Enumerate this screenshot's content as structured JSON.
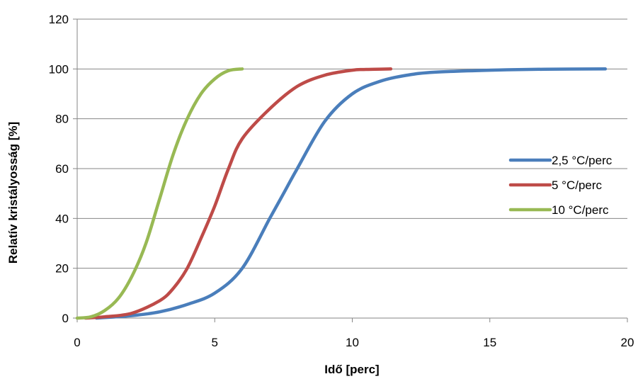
{
  "chart_data": {
    "type": "line",
    "title": "",
    "xlabel": "Idő [perc]",
    "ylabel": "Relatív kristályosság [%]",
    "xlim": [
      0,
      20
    ],
    "ylim": [
      0,
      120
    ],
    "xticks": [
      0,
      5,
      10,
      15,
      20
    ],
    "yticks": [
      0,
      20,
      40,
      60,
      80,
      100,
      120
    ],
    "x_tick_labels": [
      "0",
      "5",
      "10",
      "15",
      "20"
    ],
    "y_tick_labels": [
      "0",
      "20",
      "40",
      "60",
      "80",
      "100",
      "120"
    ],
    "grid": "horizontal",
    "legend_position": "right",
    "series": [
      {
        "name": "2,5 °C/perc",
        "color": "#4A7EBB",
        "x": [
          0.7,
          2,
          3,
          4,
          5,
          6,
          7,
          7.5,
          8,
          9,
          10,
          11,
          12,
          13,
          15,
          17,
          19.2
        ],
        "y": [
          0,
          1,
          2.5,
          5.5,
          10,
          20,
          40,
          50,
          60,
          79,
          90,
          95,
          97.5,
          98.7,
          99.5,
          99.9,
          100
        ]
      },
      {
        "name": "5 °C/perc",
        "color": "#BE4B48",
        "x": [
          0.3,
          1,
          2,
          3,
          3.5,
          4,
          4.5,
          5,
          5.5,
          6,
          7,
          8,
          9,
          10,
          10.5,
          11.4
        ],
        "y": [
          0,
          0.5,
          2,
          7,
          12,
          20,
          32,
          45,
          60,
          72,
          84,
          93,
          97.5,
          99.5,
          99.8,
          100
        ]
      },
      {
        "name": "10 °C/perc",
        "color": "#98B954",
        "x": [
          0,
          0.5,
          1,
          1.5,
          2,
          2.5,
          3,
          3.5,
          4,
          4.5,
          5,
          5.5,
          6
        ],
        "y": [
          0,
          0.5,
          3,
          8,
          17,
          30,
          48,
          66,
          80,
          90,
          96,
          99.3,
          100
        ]
      }
    ]
  }
}
